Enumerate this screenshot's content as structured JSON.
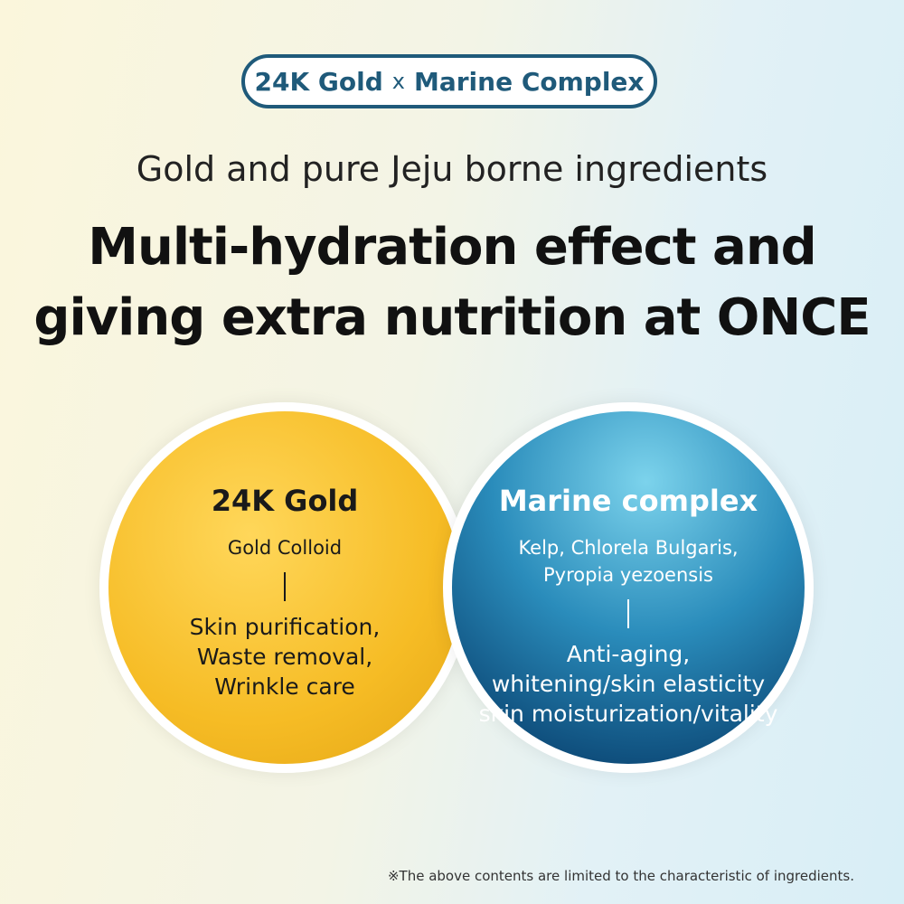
{
  "badge": {
    "left": "24K Gold",
    "joiner": "x",
    "right": "Marine Complex"
  },
  "subtitle": "Gold and pure Jeju borne ingredients",
  "headline": [
    "Multi-hydration effect and",
    "giving extra nutrition at ONCE"
  ],
  "circles": [
    {
      "title": "24K Gold",
      "ingredients": [
        "Gold Colloid"
      ],
      "benefits": [
        "Skin purification,",
        "Waste removal,",
        "Wrinkle care"
      ]
    },
    {
      "title": "Marine complex",
      "ingredients": [
        "Kelp, Chlorela Bulgaris,",
        "Pyropia yezoensis"
      ],
      "benefits": [
        "Anti-aging,",
        "whitening/skin elasticity",
        "skin moisturization/vitality"
      ]
    }
  ],
  "footnote": "※The above contents are limited to the characteristic of ingredients."
}
